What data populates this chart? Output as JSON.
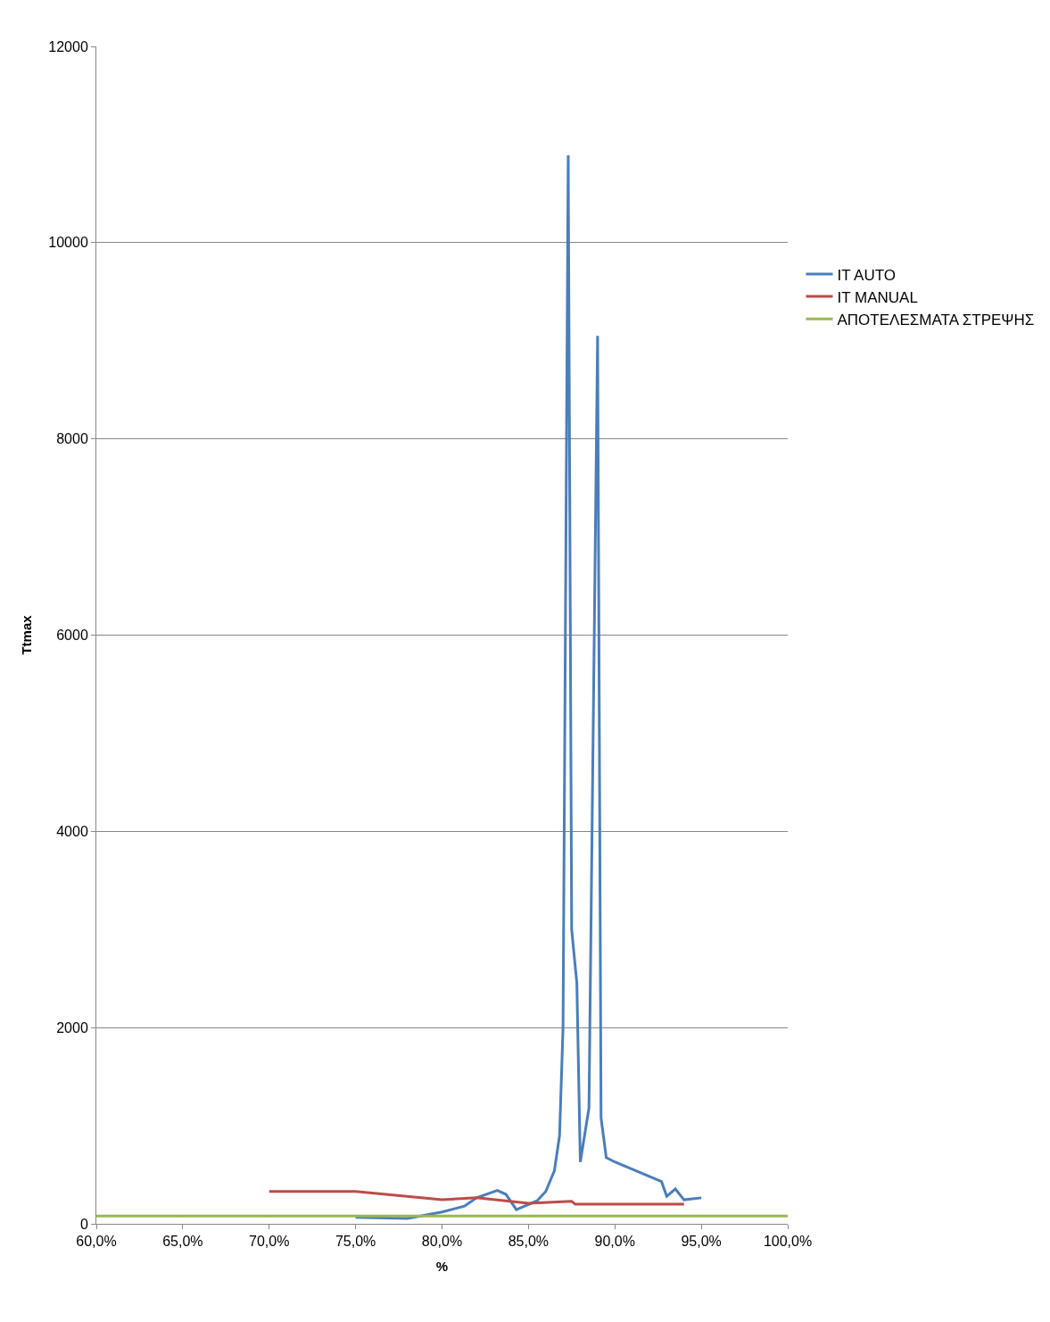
{
  "chart_data": {
    "type": "line",
    "xlabel": "%",
    "ylabel": "Ttmax",
    "xlim": [
      60,
      100
    ],
    "xticks": [
      {
        "value": 60,
        "label": "60,0%"
      },
      {
        "value": 65,
        "label": "65,0%"
      },
      {
        "value": 70,
        "label": "70,0%"
      },
      {
        "value": 75,
        "label": "75,0%"
      },
      {
        "value": 80,
        "label": "80,0%"
      },
      {
        "value": 85,
        "label": "85,0%"
      },
      {
        "value": 90,
        "label": "90,0%"
      },
      {
        "value": 95,
        "label": "95,0%"
      },
      {
        "value": 100,
        "label": "100,0%"
      }
    ],
    "ylim": [
      0,
      12000
    ],
    "yticks": [
      0,
      2000,
      4000,
      6000,
      8000,
      10000,
      12000
    ],
    "grid": "y",
    "legend": "right",
    "line_style": "solid",
    "marker": "none",
    "series": [
      {
        "name": "IT AUTO",
        "color": "#4a7ebb",
        "x": [
          75,
          78,
          80,
          81.3,
          82,
          83.2,
          83.7,
          84.3,
          85.5,
          86,
          86.5,
          86.8,
          87,
          87.3,
          87.5,
          87.8,
          88,
          88.5,
          89,
          89.2,
          89.5,
          90,
          91.5,
          92.7,
          93,
          93.5,
          94,
          95
        ],
        "values": [
          65,
          55,
          120,
          180,
          265,
          340,
          300,
          145,
          235,
          330,
          540,
          900,
          2000,
          10890,
          3000,
          2450,
          630,
          1180,
          9050,
          1080,
          675,
          630,
          520,
          430,
          280,
          355,
          245,
          265
        ]
      },
      {
        "name": "IT MANUAL",
        "color": "#be4b48",
        "x": [
          70,
          75,
          80,
          82,
          85,
          87.5,
          87.7,
          94
        ],
        "values": [
          330,
          330,
          245,
          265,
          210,
          230,
          200,
          200
        ]
      },
      {
        "name": "ΑΠΟΤΕΛΕΣΜΑΤΑ ΣΤΡΕΨΗΣ",
        "color": "#98b954",
        "x": [
          60,
          100
        ],
        "values": [
          80,
          80
        ]
      }
    ]
  }
}
